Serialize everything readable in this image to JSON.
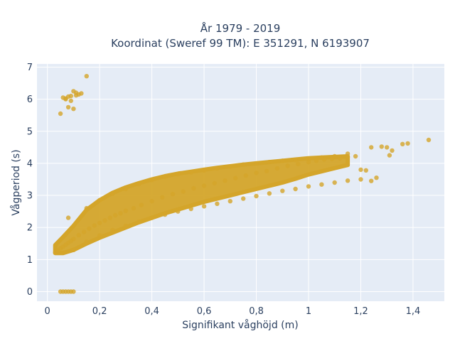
{
  "chart_data": {
    "type": "scatter",
    "title_line1": "År 1979 - 2019",
    "title_line2": "Koordinat (Sweref 99 TM): E 351291, N 6193907",
    "xlabel": "Signifikant våghöjd (m)",
    "ylabel": "Vågperiod (s)",
    "xlim": [
      -0.04,
      1.52
    ],
    "ylim": [
      -0.3,
      7.1
    ],
    "x_ticks": [
      0,
      0.2,
      0.4,
      0.6,
      0.8,
      1.0,
      1.2,
      1.4
    ],
    "x_tick_labels": [
      "0",
      "0,2",
      "0,4",
      "0,6",
      "0,8",
      "1",
      "1,2",
      "1,4"
    ],
    "y_ticks": [
      0,
      1,
      2,
      3,
      4,
      5,
      6,
      7
    ],
    "y_tick_labels": [
      "0",
      "1",
      "2",
      "3",
      "4",
      "5",
      "6",
      "7"
    ],
    "grid": true,
    "colors": {
      "marker": "#d4a52a",
      "plot_bg": "#e5ecf6",
      "grid": "#ffffff",
      "text": "#2a3f5f"
    },
    "marker_opacity": 0.8,
    "series": [
      {
        "x": [
          0.03,
          0.04,
          0.05,
          0.06,
          0.07,
          0.08,
          0.09,
          0.1,
          0.12,
          0.14,
          0.16,
          0.18,
          0.2,
          0.22,
          0.24,
          0.26,
          0.28,
          0.3,
          0.33,
          0.36,
          0.4,
          0.44,
          0.48,
          0.52,
          0.56,
          0.6,
          0.64,
          0.68,
          0.72,
          0.76,
          0.8,
          0.84,
          0.88,
          0.92,
          0.96,
          1.0,
          1.03,
          1.06,
          1.09,
          1.12,
          1.15,
          1.18,
          1.2,
          1.22,
          1.24,
          1.26,
          1.28,
          1.3,
          1.31,
          1.32,
          1.36,
          1.38,
          1.46,
          0.05,
          0.07,
          0.08,
          0.09,
          0.1,
          0.11,
          0.12,
          0.1,
          0.08,
          0.15,
          0.06,
          0.09,
          0.11,
          0.13,
          0.07,
          0.05,
          0.06,
          0.07,
          0.08,
          0.09,
          0.1,
          0.08,
          0.15,
          0.2,
          0.25,
          0.3,
          0.35,
          0.4,
          0.45,
          0.5,
          0.55,
          0.6,
          0.65,
          0.7,
          0.75,
          0.8,
          0.85,
          0.9,
          0.95,
          1.0,
          1.05,
          1.1,
          1.15,
          0.1,
          0.15,
          0.2,
          0.25,
          0.3,
          0.35,
          0.4,
          0.45,
          0.5,
          0.55,
          0.6,
          0.65,
          0.7,
          0.75,
          0.8,
          0.85,
          0.9,
          0.95,
          1.0,
          1.05,
          1.1,
          1.15,
          1.2,
          1.24
        ],
        "y": [
          1.22,
          1.28,
          1.35,
          1.4,
          1.46,
          1.52,
          1.58,
          1.64,
          1.76,
          1.86,
          1.96,
          2.06,
          2.14,
          2.22,
          2.3,
          2.38,
          2.44,
          2.52,
          2.6,
          2.7,
          2.82,
          2.94,
          3.04,
          3.12,
          3.22,
          3.3,
          3.38,
          3.46,
          3.54,
          3.62,
          3.7,
          3.76,
          3.84,
          3.92,
          3.98,
          4.04,
          4.08,
          4.12,
          4.14,
          4.16,
          4.2,
          4.22,
          3.8,
          3.78,
          4.5,
          3.55,
          4.52,
          4.5,
          4.25,
          4.4,
          4.6,
          4.62,
          4.73,
          5.55,
          6.0,
          6.08,
          6.1,
          6.25,
          6.2,
          6.15,
          5.7,
          5.75,
          6.72,
          6.05,
          5.95,
          6.12,
          6.18,
          6.02,
          0.0,
          0.0,
          0.0,
          0.0,
          0.0,
          0.0,
          2.3,
          2.6,
          2.85,
          3.05,
          3.2,
          3.35,
          3.48,
          3.58,
          3.66,
          3.72,
          3.78,
          3.84,
          3.9,
          3.96,
          4.0,
          4.04,
          4.08,
          4.1,
          4.14,
          4.18,
          4.22,
          4.3,
          1.3,
          1.55,
          1.75,
          1.92,
          2.05,
          2.18,
          2.3,
          2.4,
          2.5,
          2.58,
          2.66,
          2.74,
          2.82,
          2.9,
          2.98,
          3.06,
          3.14,
          3.2,
          3.28,
          3.34,
          3.4,
          3.46,
          3.5,
          3.45
        ]
      }
    ]
  }
}
